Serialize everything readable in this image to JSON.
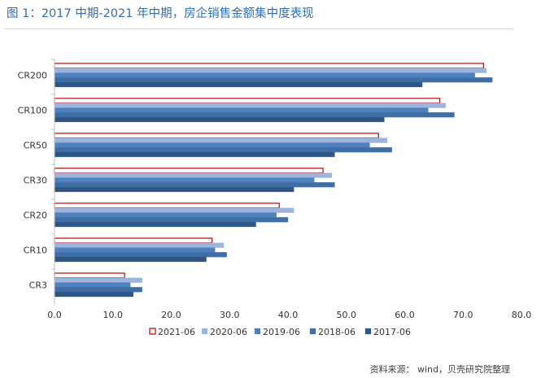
{
  "title": "图 1：2017 中期-2021 年中期，房企销售金额集中度表现",
  "source": "资料来源： wind，贝壳研究院整理",
  "chart_data": {
    "type": "bar",
    "orientation": "horizontal",
    "categories": [
      "CR200",
      "CR100",
      "CR50",
      "CR30",
      "CR20",
      "CR10",
      "CR3"
    ],
    "series": [
      {
        "name": "2021-06",
        "values": [
          73.5,
          66.0,
          55.5,
          46.0,
          38.5,
          27.0,
          12.0
        ],
        "fill": "#ffffff",
        "stroke": "#c00000"
      },
      {
        "name": "2020-06",
        "values": [
          74.0,
          67.0,
          57.0,
          47.5,
          41.0,
          29.0,
          15.0
        ],
        "fill": "#9db5dc",
        "stroke": "#9db5dc"
      },
      {
        "name": "2019-06",
        "values": [
          72.0,
          64.0,
          54.0,
          44.5,
          38.0,
          27.5,
          13.0
        ],
        "fill": "#4f81bd",
        "stroke": "#4f81bd"
      },
      {
        "name": "2018-06",
        "values": [
          75.0,
          68.5,
          57.8,
          48.0,
          40.0,
          29.5,
          15.0
        ],
        "fill": "#3f6ea6",
        "stroke": "#3f6ea6"
      },
      {
        "name": "2017-06",
        "values": [
          63.0,
          56.5,
          48.0,
          41.0,
          34.5,
          26.0,
          13.5
        ],
        "fill": "#2d5684",
        "stroke": "#2d5684"
      }
    ],
    "xlim": [
      0,
      80
    ],
    "xticks": [
      "0.0",
      "10.0",
      "20.0",
      "30.0",
      "40.0",
      "50.0",
      "60.0",
      "70.0",
      "80.0"
    ],
    "grid": false,
    "legend_position": "bottom"
  }
}
